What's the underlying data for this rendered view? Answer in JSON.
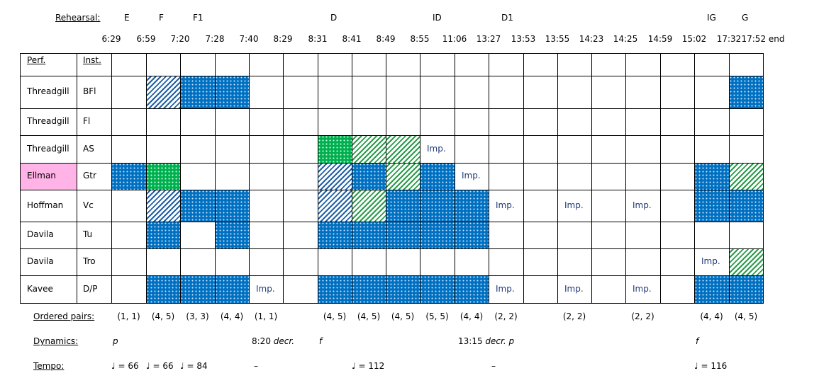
{
  "labels": {
    "rehearsal": "Rehearsal:",
    "perf": "Perf.",
    "inst": "Inst.",
    "ordered_pairs": "Ordered pairs:",
    "dynamics": "Dynamics:",
    "tempo": "Tempo:"
  },
  "rehearsal_marks": [
    "E",
    "F",
    "F1",
    "",
    "",
    "",
    "D",
    "",
    "",
    "ID",
    "",
    "D1",
    "",
    "",
    "",
    "",
    "",
    "IG",
    "G"
  ],
  "times": [
    "6:29",
    "6:59",
    "7:20",
    "7:28",
    "7:40",
    "8:29",
    "8:31",
    "8:41",
    "8:49",
    "8:55",
    "11:06",
    "13:27",
    "13:53",
    "13:55",
    "14:23",
    "14:25",
    "14:59",
    "15:02",
    "17:32",
    "17:52 end"
  ],
  "rows": [
    {
      "perf": "Threadgill",
      "inst": "BFl",
      "cells": [
        "",
        "blue-hatch",
        "blue",
        "blue",
        "",
        "",
        "",
        "",
        "",
        "",
        "",
        "",
        "",
        "",
        "",
        "",
        "",
        "",
        "blue"
      ]
    },
    {
      "perf": "Threadgill",
      "inst": "Fl",
      "cells": [
        "",
        "",
        "",
        "",
        "",
        "",
        "",
        "",
        "",
        "",
        "",
        "",
        "",
        "",
        "",
        "",
        "",
        "",
        ""
      ]
    },
    {
      "perf": "Threadgill",
      "inst": "AS",
      "cells": [
        "",
        "",
        "",
        "",
        "",
        "",
        "green",
        "green-hatch",
        "green-hatch",
        "",
        "",
        "",
        "",
        "",
        "",
        "",
        "",
        "",
        ""
      ]
    },
    {
      "perf": "Ellman",
      "inst": "Gtr",
      "cells": [
        "blue",
        "green",
        "",
        "",
        "",
        "",
        "blue-hatch",
        "blue",
        "green-hatch",
        "blue",
        "",
        "",
        "",
        "",
        "",
        "",
        "",
        "blue",
        "green-hatch"
      ]
    },
    {
      "perf": "Hoffman",
      "inst": "Vc",
      "cells": [
        "",
        "blue-hatch",
        "blue",
        "blue",
        "",
        "",
        "blue-hatch",
        "green-hatch",
        "blue",
        "blue",
        "blue",
        "",
        "",
        "",
        "",
        "",
        "",
        "blue",
        "blue"
      ]
    },
    {
      "perf": "Davila",
      "inst": "Tu",
      "cells": [
        "",
        "blue",
        "",
        "blue",
        "",
        "",
        "blue",
        "blue",
        "blue",
        "blue",
        "blue",
        "",
        "",
        "",
        "",
        "",
        "",
        "",
        ""
      ]
    },
    {
      "perf": "Davila",
      "inst": "Tro",
      "cells": [
        "",
        "",
        "",
        "",
        "",
        "",
        "",
        "",
        "",
        "",
        "",
        "",
        "",
        "",
        "",
        "",
        "",
        "",
        "green-hatch"
      ]
    },
    {
      "perf": "Kavee",
      "inst": "D/P",
      "cells": [
        "",
        "blue",
        "blue",
        "blue",
        "",
        "",
        "blue",
        "blue",
        "blue",
        "blue",
        "blue",
        "",
        "",
        "",
        "",
        "",
        "",
        "blue",
        "blue"
      ]
    }
  ],
  "imp_text": "Imp.",
  "imp_marks": [
    {
      "row": 2,
      "col": 9
    },
    {
      "row": 3,
      "col": 10
    },
    {
      "row": 4,
      "col": 11
    },
    {
      "row": 4,
      "col": 13
    },
    {
      "row": 4,
      "col": 15
    },
    {
      "row": 6,
      "col": 17
    },
    {
      "row": 7,
      "col": 4
    },
    {
      "row": 7,
      "col": 11
    },
    {
      "row": 7,
      "col": 13
    },
    {
      "row": 7,
      "col": 15
    }
  ],
  "ordered_pairs": [
    "(1, 1)",
    "(4, 5)",
    "(3, 3)",
    "(4, 4)",
    "(1, 1)",
    "",
    "(4, 5)",
    "(4, 5)",
    "(4, 5)",
    "(5, 5)",
    "(4, 4)",
    "(2, 2)",
    "",
    "(2, 2)",
    "",
    "(2, 2)",
    "",
    "(4, 4)",
    "(4, 5)"
  ],
  "dynamics": [
    {
      "col": 0,
      "text": "p",
      "italic": true
    },
    {
      "col": 4,
      "text": "8:20 ",
      "italic_part": "decr."
    },
    {
      "col": 6,
      "text": "f",
      "italic": true
    },
    {
      "col": 10,
      "text": "13:15 ",
      "italic_part": "decr. p"
    },
    {
      "col": 17,
      "text": "f",
      "italic": true
    }
  ],
  "tempo": [
    {
      "col": 0,
      "text": "♩ = 66"
    },
    {
      "col": 1,
      "text": "♩ = 66"
    },
    {
      "col": 2,
      "text": "♩ = 84"
    },
    {
      "col": 4,
      "text": "–"
    },
    {
      "col": 7,
      "text": "♩ = 112"
    },
    {
      "col": 10,
      "text": "–"
    },
    {
      "col": 17,
      "text": "♩ = 116"
    }
  ],
  "colors": {
    "blue": "#0070C0",
    "green": "#00B050",
    "pink": "#FFB3E6",
    "imp": "#1f3a78"
  }
}
